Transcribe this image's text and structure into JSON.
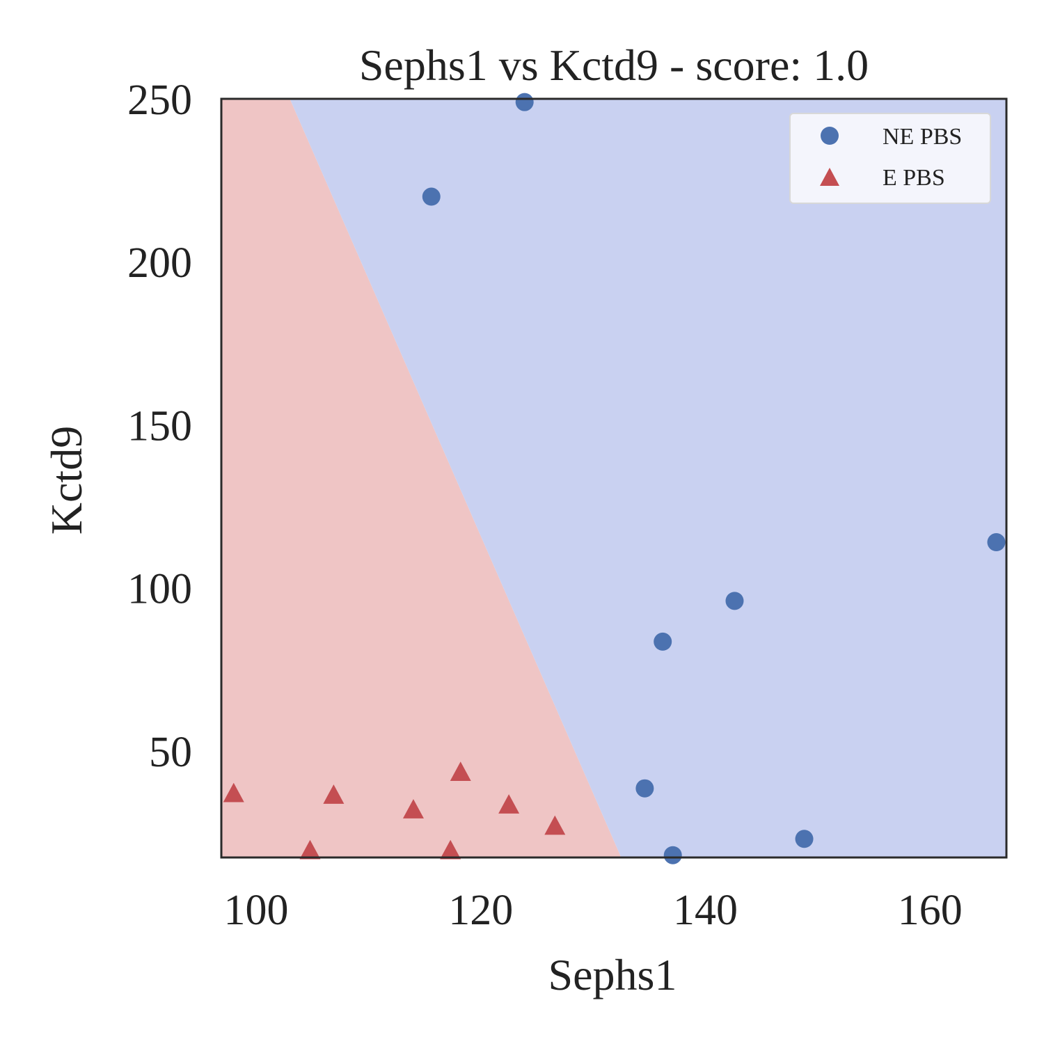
{
  "chart_data": {
    "type": "scatter",
    "title": "Sephs1 vs Kctd9 - score: 1.0",
    "xlabel": "Sephs1",
    "ylabel": "Kctd9",
    "xlim": [
      96.9,
      166.8
    ],
    "ylim": [
      17.3,
      250
    ],
    "xticks": [
      100,
      120,
      140,
      160
    ],
    "yticks": [
      50,
      100,
      150,
      200,
      250
    ],
    "grid": false,
    "legend_position": "top-right",
    "decision_regions": {
      "boundary": [
        [
          103,
          250
        ],
        [
          132.5,
          17.3
        ]
      ],
      "left_region_color": "#efc5c5",
      "right_region_color": "#c9d1f1"
    },
    "series": [
      {
        "name": "NE PBS",
        "marker": "circle",
        "color": "#4c72b0",
        "points": [
          [
            123.9,
            249
          ],
          [
            115.6,
            220
          ],
          [
            165.9,
            114
          ],
          [
            142.6,
            96
          ],
          [
            136.2,
            83.5
          ],
          [
            134.6,
            38.5
          ],
          [
            137.1,
            18
          ],
          [
            148.8,
            23
          ]
        ]
      },
      {
        "name": "E PBS",
        "marker": "triangle",
        "color": "#c44e52",
        "points": [
          [
            98.0,
            37
          ],
          [
            104.8,
            19.5
          ],
          [
            106.9,
            36.5
          ],
          [
            114.0,
            32
          ],
          [
            117.3,
            19.5
          ],
          [
            118.2,
            43.5
          ],
          [
            122.5,
            33.5
          ],
          [
            126.6,
            27
          ]
        ]
      }
    ]
  }
}
